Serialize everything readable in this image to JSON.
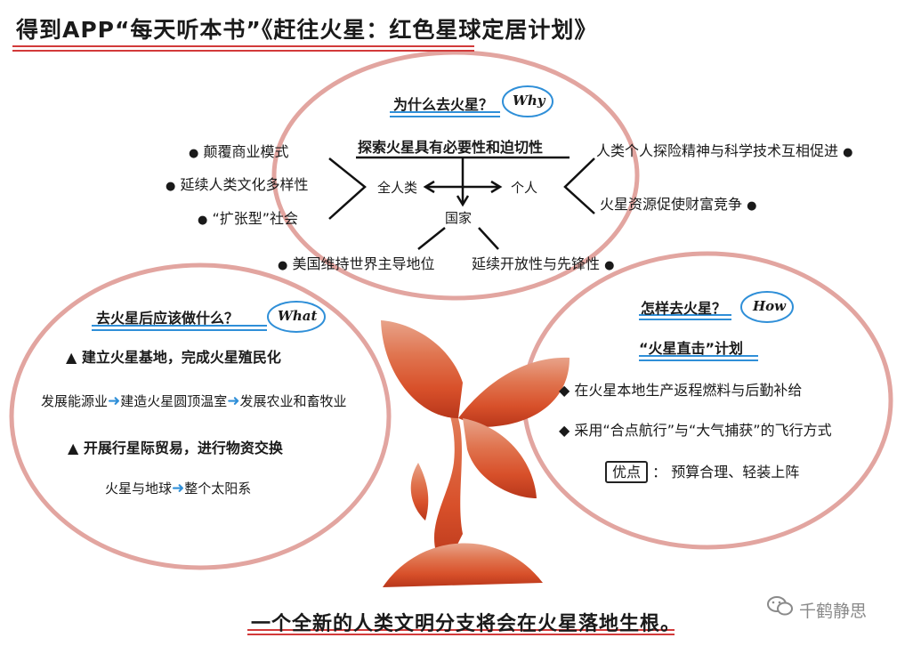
{
  "title": "得到APP“每天听本书”《赶往火星：红色星球定居计划》",
  "why": {
    "question": "为什么去火星？",
    "tag": "Why",
    "center": "探索火星具有必要性和迫切性",
    "humanity": "全人类",
    "individual": "个人",
    "nation": "国家",
    "left_items": [
      "颠覆商业模式",
      "延续人类文化多样性",
      "“扩张型”社会"
    ],
    "right_items": [
      "人类个人探险精神与科学技术互相促进",
      "火星资源促使财富竞争"
    ],
    "nation_left": "美国维持世界主导地位",
    "nation_right": "延续开放性与先锋性"
  },
  "what": {
    "question": "去火星后应该做什么？",
    "tag": "What",
    "item1": "建立火星基地，完成火星殖民化",
    "flow1": [
      "发展能源业",
      "建造火星圆顶温室",
      "发展农业和畜牧业"
    ],
    "item2": "开展行星际贸易，进行物资交换",
    "flow2": [
      "火星与地球",
      "整个太阳系"
    ]
  },
  "how": {
    "question": "怎样去火星？",
    "tag": "How",
    "plan": "“火星直击”计划",
    "item1": "在火星本地生产返程燃料与后勤补给",
    "item2": "采用“合点航行”与“大气捕获”的飞行方式",
    "adv_label": "优点",
    "adv_text": "预算合理、轻装上阵"
  },
  "bottom": "一个全新的人类文明分支将会在火星落地生根。",
  "watermark": "千鹤静思",
  "colors": {
    "oval": "#e2a5a0",
    "accent_blue": "#2f8fd8",
    "underline_red": "#d23a3a",
    "plant": "#e46a2c"
  },
  "icons": [
    "bullet-dot",
    "triangle-bullet",
    "diamond-bullet",
    "blue-arrow",
    "wechat-logo"
  ]
}
